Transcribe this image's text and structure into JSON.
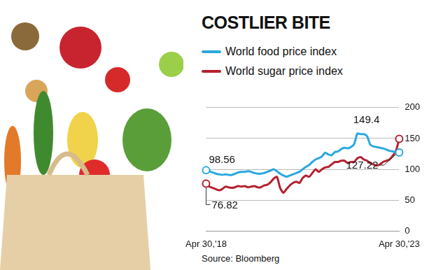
{
  "chart_data": {
    "type": "line",
    "title": "COSTLIER BITE",
    "source": "Source: Bloomberg",
    "legend": "top",
    "grid": true,
    "categories": [
      "Apr 30,'18",
      null,
      null,
      null,
      null,
      null,
      null,
      null,
      null,
      null,
      null,
      null,
      null,
      null,
      null,
      null,
      null,
      null,
      null,
      null,
      null,
      null,
      null,
      null,
      null,
      null,
      null,
      null,
      null,
      null,
      null,
      null,
      null,
      null,
      null,
      null,
      null,
      null,
      null,
      null,
      null,
      null,
      null,
      null,
      null,
      null,
      null,
      null,
      null,
      null,
      null,
      null,
      null,
      null,
      null,
      null,
      null,
      null,
      null,
      null,
      "Apr 30,'23"
    ],
    "series": [
      {
        "name": "World food price index",
        "color": "#29a8e0",
        "values": [
          98.56,
          97,
          95,
          93,
          92,
          91,
          92,
          91,
          91,
          93,
          95,
          96,
          96,
          97,
          96,
          94,
          93,
          93,
          94,
          96,
          98,
          100,
          97,
          93,
          90,
          88,
          90,
          92,
          94,
          96,
          100,
          104,
          107,
          112,
          116,
          118,
          121,
          127,
          124,
          123,
          128,
          129,
          133,
          135,
          134,
          136,
          141,
          158,
          157,
          157,
          154,
          140,
          137,
          136,
          135,
          134,
          132,
          130,
          129,
          127,
          127.22
        ]
      },
      {
        "name": "World sugar price index",
        "color": "#b5202e",
        "values": [
          76.82,
          72,
          70,
          68,
          66,
          68,
          72,
          71,
          70,
          71,
          73,
          72,
          73,
          71,
          72,
          73,
          71,
          71,
          74,
          75,
          79,
          85,
          88,
          70,
          62,
          68,
          74,
          78,
          80,
          78,
          86,
          90,
          88,
          94,
          100,
          96,
          100,
          103,
          104,
          108,
          112,
          112,
          114,
          114,
          110,
          112,
          112,
          118,
          120,
          116,
          114,
          110,
          108,
          106,
          108,
          112,
          114,
          116,
          122,
          130,
          149.4
        ]
      }
    ],
    "annotations": [
      {
        "text": "98.56",
        "series": "World food price index",
        "value": 98.56
      },
      {
        "text": "76.82",
        "series": "World sugar price index",
        "value": 76.82
      },
      {
        "text": "149.4",
        "series": "World sugar price index",
        "value": 149.4
      },
      {
        "text": "127.22",
        "series": "World food price index",
        "value": 127.22
      }
    ],
    "ylim": [
      0,
      200
    ],
    "yticks": [
      0,
      50,
      100,
      150,
      200
    ]
  }
}
